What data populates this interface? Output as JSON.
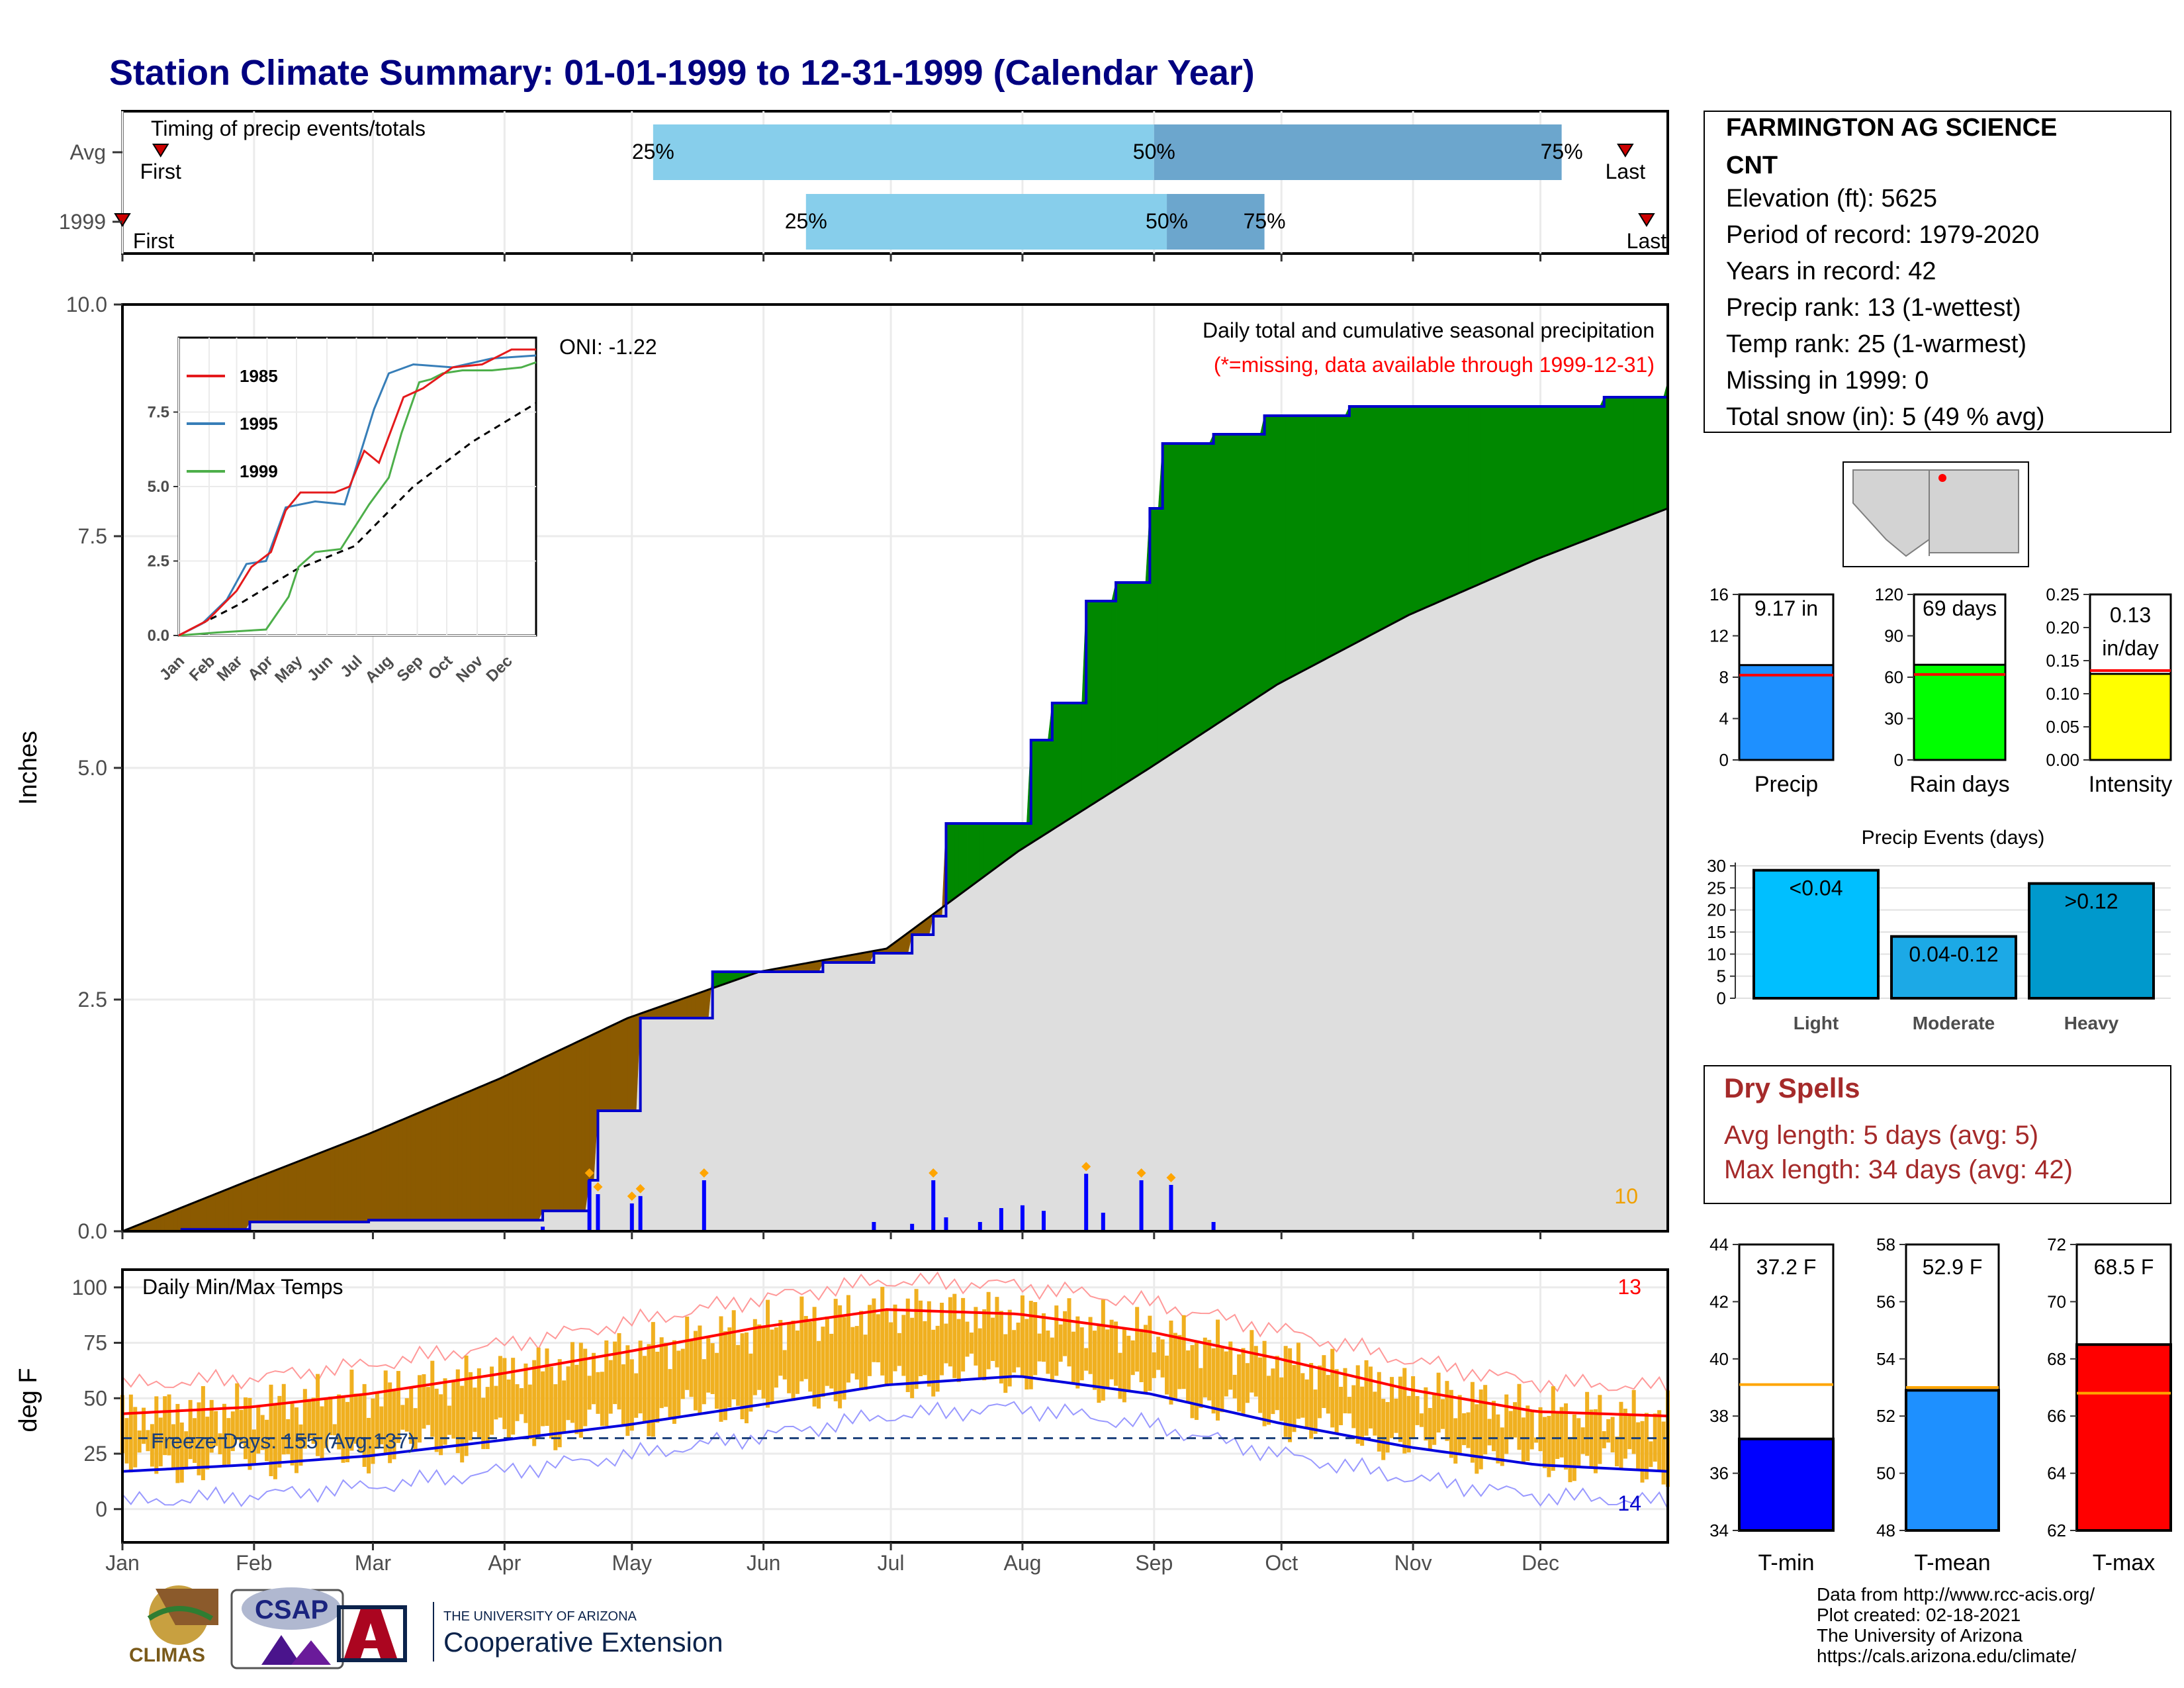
{
  "title": "Station Climate Summary: 01-01-1999 to 12-31-1999 (Calendar Year)",
  "months": [
    "Jan",
    "Feb",
    "Mar",
    "Apr",
    "May",
    "Jun",
    "Jul",
    "Aug",
    "Sep",
    "Oct",
    "Nov",
    "Dec"
  ],
  "timing": {
    "label": "Timing of precip events/totals",
    "rows": [
      {
        "name": "Avg",
        "first_label": "First",
        "last_label": "Last",
        "first_doy": 10,
        "last_doy": 355,
        "p25_doy": 126,
        "p50_doy": 244,
        "p75_doy": 340,
        "p25_label": "25%",
        "p50_label": "50%",
        "p75_label": "75%"
      },
      {
        "name": "1999",
        "first_label": "First",
        "last_label": "Last",
        "first_doy": 1,
        "last_doy": 360,
        "p25_doy": 162,
        "p50_doy": 247,
        "p75_doy": 270,
        "p25_label": "25%",
        "p50_label": "50%",
        "p75_label": "75%"
      }
    ]
  },
  "station": {
    "name": "FARMINGTON AG SCIENCE CNT",
    "lines": [
      "Elevation (ft): 5625",
      "Period of record: 1979-2020",
      "Years in record: 42",
      "Precip rank: 13 (1-wettest)",
      "Temp rank: 25 (1-warmest)",
      "Missing in 1999: 0",
      "Total snow (in): 5 (49 % avg)"
    ]
  },
  "precip_chart": {
    "ylabel": "Inches",
    "oni": "ONI: -1.22",
    "heading": "Daily total and cumulative seasonal precipitation",
    "missing_note": "(*=missing, data available through 1999-12-31)",
    "corner_count": "10",
    "yticks": [
      "0.0",
      "2.5",
      "5.0",
      "7.5",
      "10.0"
    ],
    "ylim": [
      0,
      10
    ],
    "cumulative_1999": [
      [
        1,
        0
      ],
      [
        15,
        0.02
      ],
      [
        31,
        0.1
      ],
      [
        41,
        0.1
      ],
      [
        59,
        0.12
      ],
      [
        90,
        0.12
      ],
      [
        100,
        0.22
      ],
      [
        111,
        0.55
      ],
      [
        113,
        1.3
      ],
      [
        121,
        1.3
      ],
      [
        123,
        2.3
      ],
      [
        138,
        2.3
      ],
      [
        140,
        2.8
      ],
      [
        159,
        2.8
      ],
      [
        166,
        2.9
      ],
      [
        178,
        3.0
      ],
      [
        187,
        3.2
      ],
      [
        192,
        3.4
      ],
      [
        195,
        4.4
      ],
      [
        210,
        4.4
      ],
      [
        215,
        5.3
      ],
      [
        220,
        5.7
      ],
      [
        228,
        6.8
      ],
      [
        235,
        7.0
      ],
      [
        243,
        7.8
      ],
      [
        246,
        8.5
      ],
      [
        258,
        8.6
      ],
      [
        270,
        8.8
      ],
      [
        290,
        8.9
      ],
      [
        320,
        8.9
      ],
      [
        350,
        9.0
      ],
      [
        365,
        9.17
      ]
    ],
    "cumulative_avg": [
      [
        1,
        0
      ],
      [
        31,
        0.55
      ],
      [
        59,
        1.05
      ],
      [
        90,
        1.65
      ],
      [
        120,
        2.3
      ],
      [
        151,
        2.8
      ],
      [
        181,
        3.05
      ],
      [
        212,
        4.1
      ],
      [
        243,
        5.0
      ],
      [
        273,
        5.9
      ],
      [
        304,
        6.65
      ],
      [
        334,
        7.25
      ],
      [
        365,
        7.8
      ]
    ],
    "daily_1999": [
      [
        100,
        0.05
      ],
      [
        111,
        0.55
      ],
      [
        113,
        0.4
      ],
      [
        121,
        0.3
      ],
      [
        123,
        0.38
      ],
      [
        138,
        0.55
      ],
      [
        178,
        0.1
      ],
      [
        187,
        0.08
      ],
      [
        192,
        0.55
      ],
      [
        195,
        0.15
      ],
      [
        203,
        0.1
      ],
      [
        208,
        0.25
      ],
      [
        213,
        0.28
      ],
      [
        218,
        0.22
      ],
      [
        228,
        0.62
      ],
      [
        232,
        0.2
      ],
      [
        241,
        0.55
      ],
      [
        248,
        0.5
      ],
      [
        258,
        0.1
      ]
    ]
  },
  "inset": {
    "yticks": [
      "0.0",
      "2.5",
      "5.0",
      "7.5"
    ],
    "legend": [
      "1985",
      "1995",
      "1999"
    ],
    "colors": {
      "1985": "#e41a1c",
      "1995": "#377eb8",
      "1999": "#4daf4a"
    },
    "series_1985": [
      [
        1,
        0
      ],
      [
        30,
        0.5
      ],
      [
        60,
        1.5
      ],
      [
        75,
        2.3
      ],
      [
        95,
        2.8
      ],
      [
        110,
        4.2
      ],
      [
        125,
        4.8
      ],
      [
        160,
        4.8
      ],
      [
        175,
        5.0
      ],
      [
        190,
        6.2
      ],
      [
        205,
        5.8
      ],
      [
        230,
        8.0
      ],
      [
        250,
        8.3
      ],
      [
        280,
        9.0
      ],
      [
        310,
        9.1
      ],
      [
        340,
        9.6
      ],
      [
        365,
        9.6
      ]
    ],
    "series_1995": [
      [
        1,
        0
      ],
      [
        25,
        0.4
      ],
      [
        50,
        1.2
      ],
      [
        70,
        2.4
      ],
      [
        90,
        2.5
      ],
      [
        110,
        4.3
      ],
      [
        140,
        4.5
      ],
      [
        170,
        4.4
      ],
      [
        185,
        6.0
      ],
      [
        200,
        7.6
      ],
      [
        215,
        8.8
      ],
      [
        240,
        9.1
      ],
      [
        280,
        9.0
      ],
      [
        320,
        9.3
      ],
      [
        365,
        9.4
      ]
    ],
    "series_1999": [
      [
        1,
        0
      ],
      [
        40,
        0.1
      ],
      [
        90,
        0.2
      ],
      [
        113,
        1.3
      ],
      [
        123,
        2.3
      ],
      [
        140,
        2.8
      ],
      [
        166,
        2.9
      ],
      [
        195,
        4.4
      ],
      [
        215,
        5.3
      ],
      [
        228,
        6.8
      ],
      [
        246,
        8.5
      ],
      [
        258,
        8.6
      ],
      [
        270,
        8.8
      ],
      [
        290,
        8.9
      ],
      [
        320,
        8.9
      ],
      [
        350,
        9.0
      ],
      [
        365,
        9.17
      ]
    ],
    "series_avg": [
      [
        1,
        0
      ],
      [
        60,
        1.0
      ],
      [
        120,
        2.2
      ],
      [
        180,
        3.0
      ],
      [
        240,
        5.0
      ],
      [
        300,
        6.5
      ],
      [
        365,
        7.8
      ]
    ]
  },
  "temp_chart": {
    "ylabel": "deg F",
    "label": "Daily Min/Max Temps",
    "freeze": "Freeze Days: 155 (Avg:137)",
    "count_high": "13",
    "count_low": "14",
    "yticks": [
      "0",
      "25",
      "50",
      "75",
      "100"
    ],
    "ylim": [
      -15,
      108
    ],
    "avg_max": [
      [
        1,
        43
      ],
      [
        31,
        46
      ],
      [
        59,
        52
      ],
      [
        90,
        61
      ],
      [
        120,
        71
      ],
      [
        151,
        82
      ],
      [
        181,
        90
      ],
      [
        212,
        88
      ],
      [
        243,
        80
      ],
      [
        273,
        68
      ],
      [
        304,
        54
      ],
      [
        334,
        44
      ],
      [
        365,
        42
      ]
    ],
    "avg_min": [
      [
        1,
        17
      ],
      [
        31,
        20
      ],
      [
        59,
        24
      ],
      [
        90,
        31
      ],
      [
        120,
        38
      ],
      [
        151,
        47
      ],
      [
        181,
        56
      ],
      [
        212,
        60
      ],
      [
        243,
        52
      ],
      [
        273,
        39
      ],
      [
        304,
        28
      ],
      [
        334,
        20
      ],
      [
        365,
        17
      ]
    ]
  },
  "mini_bars": [
    {
      "label": "Precip",
      "value_text": "9.17 in",
      "value": 9.17,
      "avg": 8.2,
      "ymax": 16,
      "yticks": [
        "0",
        "4",
        "8",
        "12",
        "16"
      ],
      "color": "#1e90ff"
    },
    {
      "label": "Rain days",
      "value_text": "69 days",
      "value": 69,
      "avg": 62,
      "ymax": 120,
      "yticks": [
        "0",
        "30",
        "60",
        "90",
        "120"
      ],
      "color": "#00ff00"
    },
    {
      "label": "Intensity",
      "value_text": "0.13 in/day",
      "value": 0.13,
      "avg": 0.135,
      "ymax": 0.25,
      "yticks": [
        "0.00",
        "0.05",
        "0.10",
        "0.15",
        "0.20",
        "0.25"
      ],
      "color": "#ffff00"
    }
  ],
  "events": {
    "title": "Precip Events (days)",
    "categories": [
      "Light",
      "Moderate",
      "Heavy"
    ],
    "values": [
      29,
      14,
      26
    ],
    "bar_labels": [
      "<0.04",
      "0.04-0.12",
      ">0.12"
    ],
    "yticks": [
      "0",
      "5",
      "10",
      "15",
      "20",
      "25",
      "30"
    ],
    "colors": [
      "#00bfff",
      "#1ca9e6",
      "#0099cc"
    ]
  },
  "dry": {
    "title": "Dry Spells",
    "avg": "Avg length: 5 days (avg: 5)",
    "max": "Max length: 34 days (avg: 42)"
  },
  "temp_bars": [
    {
      "label": "T-min",
      "value_text": "37.2 F",
      "value": 37.2,
      "avg": 39.1,
      "ymin": 34,
      "ymax": 44,
      "yticks": [
        "34",
        "36",
        "38",
        "40",
        "42",
        "44"
      ],
      "color": "#0000ff"
    },
    {
      "label": "T-mean",
      "value_text": "52.9 F",
      "value": 52.9,
      "avg": 53.0,
      "ymin": 48,
      "ymax": 58,
      "yticks": [
        "48",
        "50",
        "52",
        "54",
        "56",
        "58"
      ],
      "color": "#1e90ff"
    },
    {
      "label": "T-max",
      "value_text": "68.5 F",
      "value": 68.5,
      "avg": 66.8,
      "ymin": 62,
      "ymax": 72,
      "yticks": [
        "62",
        "64",
        "66",
        "68",
        "70",
        "72"
      ],
      "color": "#ff0000"
    }
  ],
  "footer": {
    "lines": [
      "Data from http://www.rcc-acis.org/",
      "Plot created: 02-18-2021",
      "The University of Arizona",
      "https://cals.arizona.edu/climate/"
    ],
    "logo_climas": "CLIMAS",
    "logo_csap": "CSAP",
    "ua_small": "THE UNIVERSITY OF ARIZONA",
    "ua_big": "Cooperative Extension"
  }
}
